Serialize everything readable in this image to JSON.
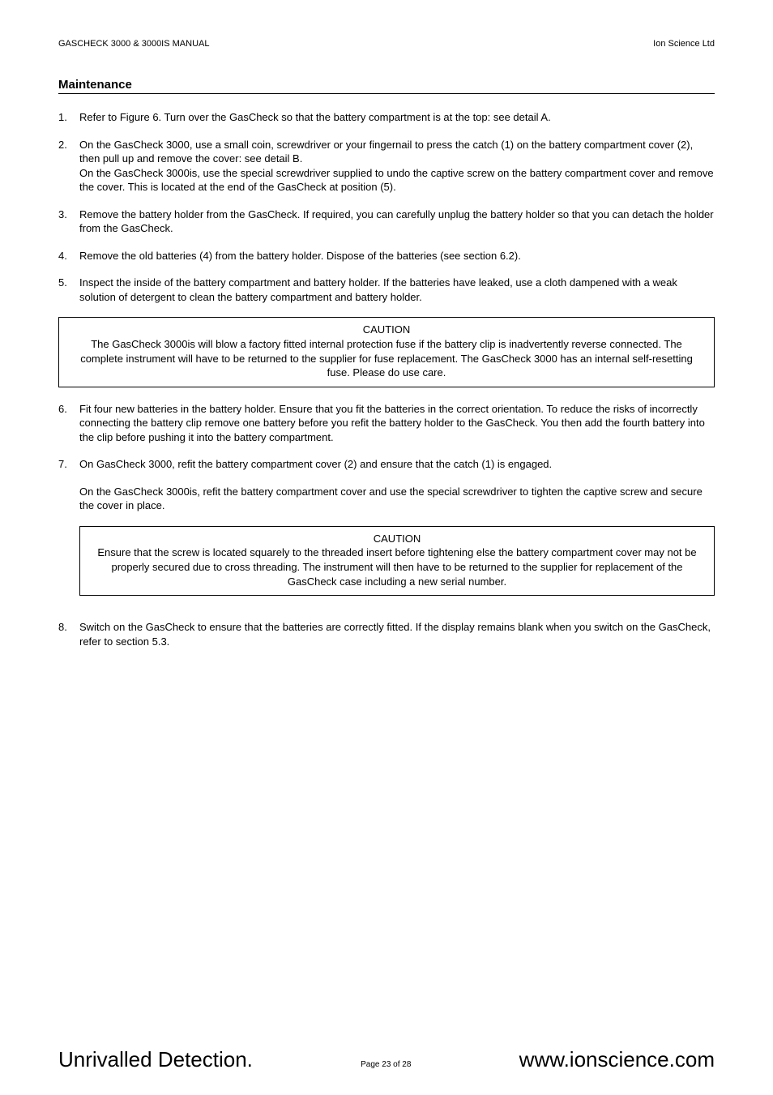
{
  "header": {
    "left": "GASCHECK 3000 & 3000IS MANUAL",
    "right": "Ion Science Ltd"
  },
  "section_title": "Maintenance",
  "items": [
    "Refer to Figure 6. Turn over the GasCheck so that the battery compartment is at the top: see detail A.",
    "On the GasCheck 3000, use a small coin, screwdriver or your fingernail to press the catch (1) on the battery compartment cover (2), then pull up and remove the cover: see detail B.\nOn the GasCheck 3000is, use the special screwdriver supplied to undo the captive screw on the battery compartment cover and remove the cover. This is located at the end of the GasCheck at position (5).",
    "Remove the battery holder from the GasCheck. If required, you can carefully unplug the battery holder so that you can detach the holder from the GasCheck.",
    "Remove the old batteries (4) from the battery holder. Dispose of the batteries (see section 6.2).",
    "Inspect the inside of the battery compartment and battery holder. If the batteries have leaked, use a cloth dampened with a weak solution of detergent to clean the battery compartment and battery holder."
  ],
  "caution1": {
    "title": "CAUTION",
    "body": "The GasCheck 3000is will blow a factory fitted internal protection fuse if the battery clip is inadvertently reverse connected. The complete instrument will have to be returned to the supplier for fuse replacement. The GasCheck 3000 has an internal self-resetting fuse. Please do use care."
  },
  "items2": [
    "Fit four new batteries in the battery holder. Ensure that you fit the batteries in the correct orientation. To reduce the risks of incorrectly connecting the battery clip remove one battery before you refit the battery holder to the GasCheck. You then add the fourth battery into the clip before pushing it into the battery compartment.",
    "On GasCheck 3000, refit the battery compartment cover (2) and ensure that the catch (1) is engaged."
  ],
  "cont_para": "On the GasCheck 3000is, refit the battery compartment cover and use the special screwdriver to tighten the captive screw and secure the cover in place.",
  "caution2": {
    "title": "CAUTION",
    "body": "Ensure that the screw is located squarely to the threaded insert before tightening else the battery compartment cover may not be properly secured due to cross threading. The instrument will then have to be returned to the supplier for replacement of the GasCheck case including a new serial number."
  },
  "items3": [
    "Switch on the GasCheck to ensure that the batteries are correctly fitted. If the display remains blank when you switch on the GasCheck, refer to section 5.3."
  ],
  "footer": {
    "left": "Unrivalled Detection.",
    "center": "Page 23 of 28",
    "right": "www.ionscience.com"
  }
}
